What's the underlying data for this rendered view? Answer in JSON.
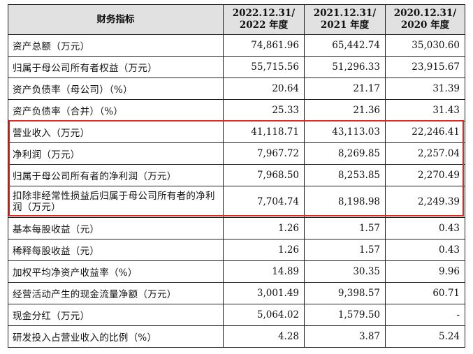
{
  "table": {
    "headers": [
      {
        "line1": "财务指标",
        "line2": ""
      },
      {
        "line1": "2022.12.31/",
        "line2": "2022 年度"
      },
      {
        "line1": "2021.12.31/",
        "line2": "2021 年度"
      },
      {
        "line1": "2020.12.31/",
        "line2": "2020 年度"
      }
    ],
    "rows": [
      {
        "label": "资产总额（万元）",
        "v2022": "74,861.96",
        "v2021": "65,442.74",
        "v2020": "35,030.60"
      },
      {
        "label": "归属于母公司所有者权益（万元）",
        "v2022": "55,715.56",
        "v2021": "51,296.33",
        "v2020": "23,915.67"
      },
      {
        "label": "资产负债率（母公司）（%）",
        "v2022": "20.64",
        "v2021": "21.17",
        "v2020": "31.39"
      },
      {
        "label": "资产负债率（合并）（%）",
        "v2022": "25.33",
        "v2021": "21.36",
        "v2020": "31.43"
      },
      {
        "label": "营业收入（万元）",
        "v2022": "41,118.71",
        "v2021": "43,113.03",
        "v2020": "22,246.41"
      },
      {
        "label": "净利润（万元）",
        "v2022": "7,967.72",
        "v2021": "8,269.85",
        "v2020": "2,257.04"
      },
      {
        "label": "归属于母公司所有者的净利润（万元）",
        "v2022": "7,968.50",
        "v2021": "8,253.85",
        "v2020": "2,270.49"
      },
      {
        "label": "扣除非经常性损益后归属于母公司所有者的净利润（万元）",
        "v2022": "7,704.74",
        "v2021": "8,198.98",
        "v2020": "2,249.39"
      },
      {
        "label": "基本每股收益（元）",
        "v2022": "1.26",
        "v2021": "1.57",
        "v2020": "0.43"
      },
      {
        "label": "稀释每股收益（元）",
        "v2022": "1.26",
        "v2021": "1.57",
        "v2020": "0.43"
      },
      {
        "label": "加权平均净资产收益率（%）",
        "v2022": "14.89",
        "v2021": "30.35",
        "v2020": "9.96"
      },
      {
        "label": "经营活动产生的现金流量净额（万元）",
        "v2022": "3,001.49",
        "v2021": "9,398.57",
        "v2020": "60.71"
      },
      {
        "label": "现金分红（万元）",
        "v2022": "5,064.02",
        "v2021": "1,579.50",
        "v2020": "-"
      },
      {
        "label": "研发投入占营业收入的比例（%）",
        "v2022": "4.28",
        "v2021": "3.87",
        "v2020": "5.24"
      }
    ]
  },
  "highlight": {
    "color": "#e0291f",
    "rows": [
      "营业收入（万元）",
      "净利润（万元）",
      "归属于母公司所有者的净利润（万元）",
      "扣除非经常性损益后归属于母公司所有者的净利润（万元）"
    ]
  },
  "colors": {
    "header_bg": "#e1e1e1",
    "border": "#222222"
  }
}
